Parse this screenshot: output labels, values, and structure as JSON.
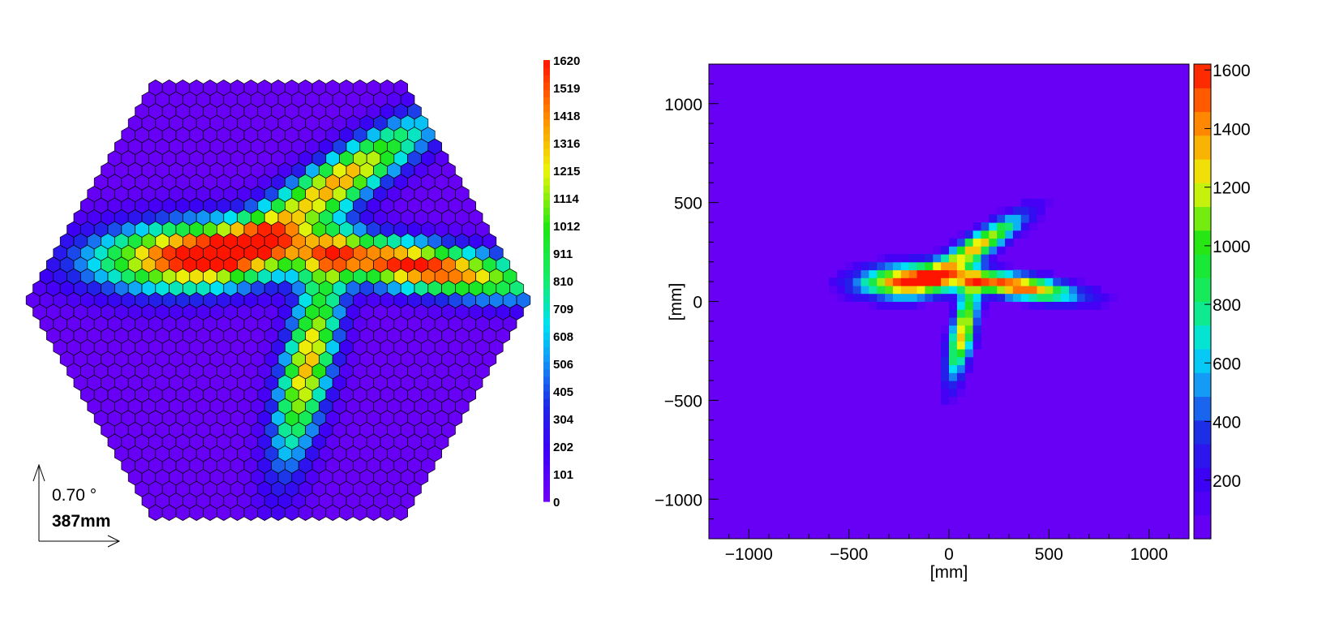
{
  "chart_data": [
    {
      "type": "heatmap",
      "title": "",
      "cell_shape": "hexagon",
      "camera_shape": "hexagon",
      "colorbar": {
        "min": 0,
        "max": 1620,
        "tick_labels": [
          "1620",
          "1519",
          "1418",
          "1316",
          "1215",
          "1114",
          "1012",
          "911",
          "810",
          "709",
          "608",
          "506",
          "405",
          "304",
          "202",
          "101",
          "0"
        ]
      },
      "blobs": [
        {
          "name": "upper",
          "x": 140,
          "y": 280,
          "peak": 1300
        },
        {
          "name": "left",
          "x": -200,
          "y": 105,
          "peak": 1620
        },
        {
          "name": "right",
          "x": 330,
          "y": 80,
          "peak": 1600
        },
        {
          "name": "lower",
          "x": 70,
          "y": -150,
          "peak": 1300
        }
      ],
      "scale_indicator": {
        "angle_label": "0.70 °",
        "length_label": "387mm"
      }
    },
    {
      "type": "heatmap",
      "title": "",
      "xlabel": "[mm]",
      "ylabel": "[mm]",
      "xlim": [
        -1200,
        1200
      ],
      "ylim": [
        -1200,
        1200
      ],
      "x_tick_labels": [
        "−1000",
        "−500",
        "0",
        "500",
        "1000"
      ],
      "y_tick_labels": [
        "1000",
        "500",
        "0",
        "−500",
        "−1000"
      ],
      "x_ticks": [
        -1000,
        -500,
        0,
        500,
        1000
      ],
      "y_ticks": [
        1000,
        500,
        0,
        -500,
        -1000
      ],
      "z_range": [
        0,
        1620
      ],
      "colorbar_tick_labels": [
        "1600",
        "1400",
        "1200",
        "1000",
        "800",
        "600",
        "400",
        "200"
      ],
      "colorbar_ticks": [
        1600,
        1400,
        1200,
        1000,
        800,
        600,
        400,
        200
      ],
      "bins": [
        {
          "x": 200,
          "y": 600,
          "z": 250
        },
        {
          "x": 250,
          "y": 500,
          "z": 700
        },
        {
          "x": 220,
          "y": 450,
          "z": 900
        },
        {
          "x": 200,
          "y": 400,
          "z": 1300
        },
        {
          "x": 180,
          "y": 350,
          "z": 1000
        },
        {
          "x": -100,
          "y": 200,
          "z": 1200
        },
        {
          "x": -150,
          "y": 180,
          "z": 800
        },
        {
          "x": -250,
          "y": 180,
          "z": 400
        },
        {
          "x": -100,
          "y": 150,
          "z": 1620
        },
        {
          "x": -200,
          "y": 130,
          "z": 600
        },
        {
          "x": 300,
          "y": 110,
          "z": 1300
        },
        {
          "x": 450,
          "y": 100,
          "z": 1600
        },
        {
          "x": 550,
          "y": 80,
          "z": 700
        },
        {
          "x": 640,
          "y": 60,
          "z": 300
        },
        {
          "x": 130,
          "y": -80,
          "z": 1200
        },
        {
          "x": 150,
          "y": -160,
          "z": 1620
        },
        {
          "x": 180,
          "y": -230,
          "z": 900
        },
        {
          "x": 230,
          "y": -300,
          "z": 500
        }
      ]
    }
  ]
}
